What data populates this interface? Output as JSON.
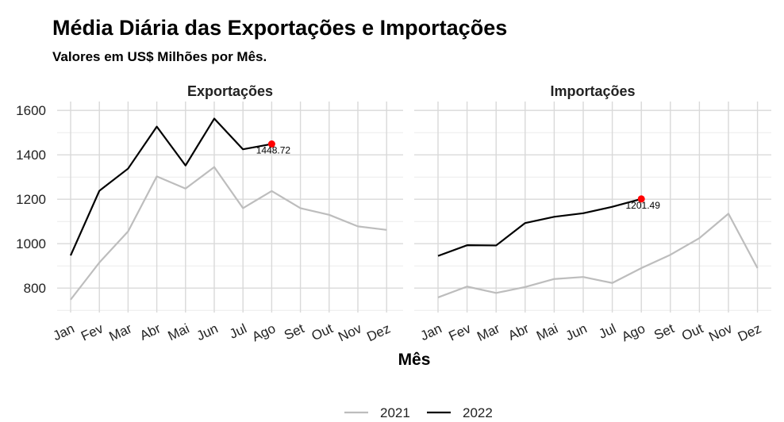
{
  "title": "Média Diária das Exportações e Importações",
  "subtitle": "Valores em US$ Milhões por Mês.",
  "chart_data": {
    "type": "line",
    "xlabel": "Mês",
    "ylabel": "",
    "ylim": [
      690,
      1640
    ],
    "yticks": [
      800,
      1000,
      1200,
      1400,
      1600
    ],
    "categories": [
      "Jan",
      "Fev",
      "Mar",
      "Abr",
      "Mai",
      "Jun",
      "Jul",
      "Ago",
      "Set",
      "Out",
      "Nov",
      "Dez"
    ],
    "series_colors": {
      "2021": "#bdbdbd",
      "2022": "#000000"
    },
    "legend": {
      "position": "bottom",
      "entries": [
        "2021",
        "2022"
      ]
    },
    "grid": true,
    "highlight_color": "#ff0000",
    "panels": [
      {
        "name": "Exportações",
        "series": [
          {
            "name": "2021",
            "values": [
              748,
              915,
              1055,
              1303,
              1248,
              1345,
              1160,
              1237,
              1160,
              1130,
              1078,
              1062
            ]
          },
          {
            "name": "2022",
            "values": [
              947,
              1238,
              1338,
              1527,
              1352,
              1563,
              1425,
              1448.72
            ]
          }
        ],
        "highlight": {
          "series": "2022",
          "category": "Ago",
          "value": 1448.72,
          "label": "1448.72"
        }
      },
      {
        "name": "Importações",
        "series": [
          {
            "name": "2021",
            "values": [
              758,
              807,
              778,
              805,
              841,
              850,
              823,
              890,
              950,
              1025,
              1135,
              890
            ]
          },
          {
            "name": "2022",
            "values": [
              945,
              993,
              992,
              1093,
              1121,
              1137,
              1166,
              1201.49
            ]
          }
        ],
        "highlight": {
          "series": "2022",
          "category": "Ago",
          "value": 1201.49,
          "label": "1201.49"
        }
      }
    ]
  }
}
